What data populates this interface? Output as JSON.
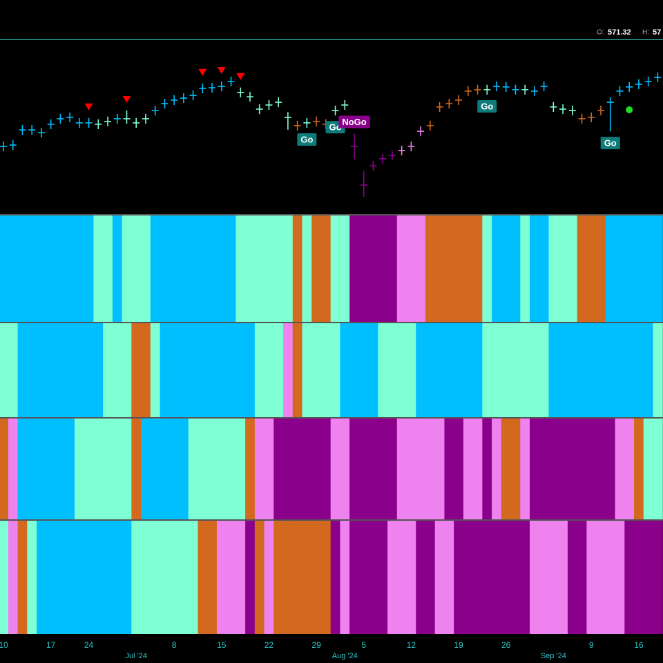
{
  "header": {
    "open_label": "O:",
    "open": "571.32",
    "high_label": "H:",
    "high": "57"
  },
  "chart_data": {
    "type": "ohlc",
    "categories": [
      "10",
      null,
      null,
      null,
      null,
      "17",
      null,
      null,
      null,
      "24",
      null,
      null,
      null,
      null,
      null,
      null,
      null,
      null,
      "8",
      null,
      null,
      null,
      null,
      "15",
      null,
      null,
      null,
      null,
      "22",
      null,
      null,
      null,
      null,
      "29",
      null,
      null,
      null,
      null,
      "5",
      null,
      null,
      null,
      null,
      "12",
      null,
      null,
      null,
      null,
      "19",
      null,
      null,
      null,
      null,
      "26",
      null,
      null,
      null,
      null,
      null,
      null,
      null,
      null,
      "9",
      null,
      null,
      null,
      null,
      "16",
      null,
      null
    ],
    "month_labels": [
      null,
      null,
      null,
      null,
      null,
      null,
      null,
      null,
      null,
      null,
      null,
      null,
      null,
      null,
      "Jul '24",
      null,
      null,
      null,
      null,
      null,
      null,
      null,
      null,
      null,
      null,
      null,
      null,
      null,
      null,
      null,
      null,
      null,
      null,
      null,
      null,
      null,
      "Aug '24",
      null,
      null,
      null,
      null,
      null,
      null,
      null,
      null,
      null,
      null,
      null,
      null,
      null,
      null,
      null,
      null,
      null,
      null,
      null,
      null,
      null,
      "Sep '24",
      null,
      null,
      null,
      null,
      null,
      null,
      null,
      null,
      null,
      null,
      null
    ],
    "close": [
      534.5,
      535.2,
      542.9,
      542.9,
      541.5,
      545.8,
      548.6,
      549.3,
      546.5,
      546.5,
      545.8,
      547.2,
      548.6,
      548.6,
      546.5,
      548.6,
      552.8,
      556.3,
      558.1,
      559.1,
      560.5,
      564.1,
      564.4,
      565.1,
      567.6,
      562.0,
      559.8,
      553.5,
      555.6,
      557.0,
      549.3,
      545.1,
      546.5,
      547.2,
      545.8,
      552.8,
      555.6,
      534.5,
      514.8,
      524.6,
      528.2,
      529.9,
      532.4,
      534.5,
      542.2,
      545.1,
      554.6,
      556.3,
      558.1,
      562.7,
      563.4,
      563.4,
      565.1,
      564.8,
      563.4,
      563.4,
      562.7,
      565.1,
      554.6,
      553.5,
      552.8,
      548.6,
      549.3,
      552.8,
      557.0,
      562.7,
      564.8,
      566.2,
      567.6,
      569.7
    ],
    "high": [
      537.0,
      537.7,
      545.4,
      545.4,
      544.0,
      548.3,
      551.1,
      551.8,
      549.0,
      549.0,
      548.3,
      549.7,
      551.1,
      552.8,
      549.0,
      551.1,
      555.3,
      558.8,
      560.6,
      561.6,
      563.0,
      566.6,
      566.9,
      567.6,
      570.1,
      564.5,
      562.3,
      556.0,
      558.1,
      559.5,
      552.0,
      547.6,
      549.0,
      549.7,
      548.3,
      555.3,
      558.1,
      541.0,
      522.0,
      527.1,
      530.7,
      532.4,
      534.9,
      537.0,
      544.7,
      547.6,
      557.1,
      558.8,
      560.6,
      565.2,
      565.9,
      565.9,
      567.6,
      567.3,
      565.9,
      565.9,
      565.2,
      567.6,
      557.1,
      556.0,
      555.3,
      551.1,
      551.8,
      555.3,
      559.5,
      565.2,
      567.3,
      568.7,
      570.1,
      572.2
    ],
    "low": [
      532.0,
      532.7,
      540.4,
      540.4,
      539.0,
      543.3,
      546.1,
      546.8,
      544.0,
      544.0,
      543.3,
      544.7,
      546.1,
      546.1,
      544.0,
      546.1,
      550.3,
      553.8,
      555.6,
      556.6,
      558.0,
      561.6,
      561.9,
      562.6,
      565.1,
      559.5,
      557.3,
      551.0,
      553.1,
      554.5,
      543.0,
      542.6,
      544.0,
      544.7,
      543.3,
      550.3,
      553.1,
      528.0,
      508.8,
      522.1,
      525.7,
      527.4,
      529.9,
      532.0,
      539.7,
      542.6,
      552.1,
      553.8,
      555.6,
      560.2,
      560.9,
      560.9,
      562.6,
      562.3,
      560.9,
      560.9,
      560.2,
      562.6,
      552.1,
      551.0,
      550.3,
      546.1,
      546.8,
      550.3,
      542.2,
      560.2,
      562.3,
      563.7,
      565.1,
      567.2
    ],
    "ylim": [
      500,
      588
    ],
    "palette": {
      "G": "#00bfff",
      "g": "#7fffd4",
      "a": "#d2691e",
      "n": "#ee82ee",
      "N": "#8b008b"
    },
    "panels": [
      "GGGGGGGGGGggGgggGGGGGGGGGggggggagaaggNNNNNnnnaaaaaagGGGgGGgggaaaGGGGGG",
      "ggGGGGGGGGGgggaagGGGGGGGGGGgggnaggggGGGGggggGGGGGGGgggggggGGGGGGGGGGGg",
      "anGGGGGGggggggaGGGGGggggggannNNNNNNnnNNNNNnnnnnNNnnNnaanNNNNNNNNNnnagg",
      "gnagGGGGGGGGGGgggggggaannnNanaaaaaaNnNNNNnnnNNnnNNNNNNNNnnnnNNnnnnNNNN"
    ],
    "markers": [
      {
        "bar": 9,
        "shape": "down-triangle",
        "color": "#ff0000"
      },
      {
        "bar": 13,
        "shape": "down-triangle",
        "color": "#ff0000"
      },
      {
        "bar": 21,
        "shape": "down-triangle",
        "color": "#ff0000"
      },
      {
        "bar": 23,
        "shape": "down-triangle",
        "color": "#ff0000"
      },
      {
        "bar": 25,
        "shape": "down-triangle",
        "color": "#ff0000"
      },
      {
        "bar": 66,
        "shape": "dot",
        "color": "#22dd22"
      }
    ],
    "annotations": [
      {
        "text": "Go",
        "bar": 32,
        "position": "below",
        "color": "#0e7b7b"
      },
      {
        "text": "Go",
        "bar": 35,
        "position": "below",
        "color": "#0e7b7b"
      },
      {
        "text": "NoGo",
        "bar": 37,
        "position": "above",
        "color": "#8b008b"
      },
      {
        "text": "Go",
        "bar": 51,
        "position": "below",
        "color": "#0e7b7b"
      },
      {
        "text": "Go",
        "bar": 64,
        "position": "below",
        "color": "#0e7b7b"
      }
    ]
  }
}
